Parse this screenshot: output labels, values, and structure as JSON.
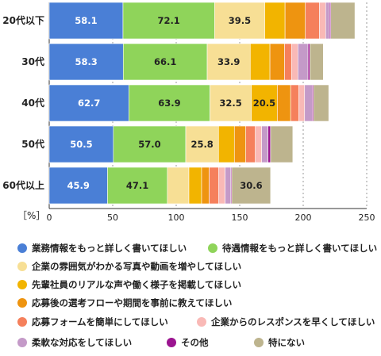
{
  "chart_data": {
    "type": "bar",
    "orientation": "horizontal",
    "stacked": true,
    "unit_label": "［%］",
    "categories": [
      "20代以下",
      "30代",
      "40代",
      "50代",
      "60代以上"
    ],
    "xlim": [
      0,
      250
    ],
    "xticks": [
      0,
      50,
      100,
      150,
      200,
      250
    ],
    "grid": "vertical dashed",
    "legend_position": "bottom",
    "series": [
      {
        "name": "業務情報をもっと詳しく書いてほしい",
        "color": "#4a7fd6",
        "values": [
          58.1,
          58.3,
          62.7,
          50.5,
          45.9
        ],
        "labels": [
          "58.1",
          "58.3",
          "62.7",
          "50.5",
          "45.9"
        ]
      },
      {
        "name": "待遇情報をもっと詳しく書いてほしい",
        "color": "#8fd45a",
        "values": [
          72.1,
          66.1,
          63.9,
          57.0,
          47.1
        ],
        "labels": [
          "72.1",
          "66.1",
          "63.9",
          "57.0",
          "47.1"
        ]
      },
      {
        "name": "企業の雰囲気がわかる写真や動画を増やしてほしい",
        "color": "#f7df95",
        "values": [
          39.5,
          33.9,
          32.5,
          25.8,
          17.0
        ],
        "labels": [
          "39.5",
          "33.9",
          "32.5",
          "25.8",
          ""
        ]
      },
      {
        "name": "先輩社員のリアルな声や働く様子を掲載してほしい",
        "color": "#f2b400",
        "values": [
          16.0,
          15.5,
          20.5,
          12.5,
          10.0
        ],
        "labels": [
          "",
          "",
          "20.5",
          "",
          ""
        ]
      },
      {
        "name": "応募後の選考フローや期間を事前に教えてほしい",
        "color": "#ee9410",
        "values": [
          16.0,
          11.5,
          10.5,
          9.0,
          6.0
        ],
        "labels": [
          "",
          "",
          "",
          "",
          ""
        ]
      },
      {
        "name": "応募フォームを簡単にしてほしい",
        "color": "#f5805c",
        "values": [
          11.0,
          5.5,
          6.5,
          7.5,
          7.5
        ],
        "labels": [
          "",
          "",
          "",
          "",
          ""
        ]
      },
      {
        "name": "企業からのレスポンスを早くしてほしい",
        "color": "#f9b9b6",
        "values": [
          5.0,
          5.0,
          4.5,
          5.0,
          5.0
        ],
        "labels": [
          "",
          "",
          "",
          "",
          ""
        ]
      },
      {
        "name": "柔軟な対応をしてほしい",
        "color": "#c49ac8",
        "values": [
          3.0,
          8.0,
          6.0,
          5.0,
          4.5
        ],
        "labels": [
          "",
          "",
          "",
          "",
          ""
        ]
      },
      {
        "name": "その他",
        "color": "#9b1490",
        "values": [
          1.0,
          1.5,
          1.0,
          2.0,
          0.7
        ],
        "labels": [
          "",
          "",
          "",
          "",
          ""
        ]
      },
      {
        "name": "特にない",
        "color": "#bdb48e",
        "values": [
          19.0,
          10.5,
          12.0,
          17.5,
          30.6
        ],
        "labels": [
          "",
          "",
          "",
          "",
          "30.6"
        ]
      }
    ]
  }
}
